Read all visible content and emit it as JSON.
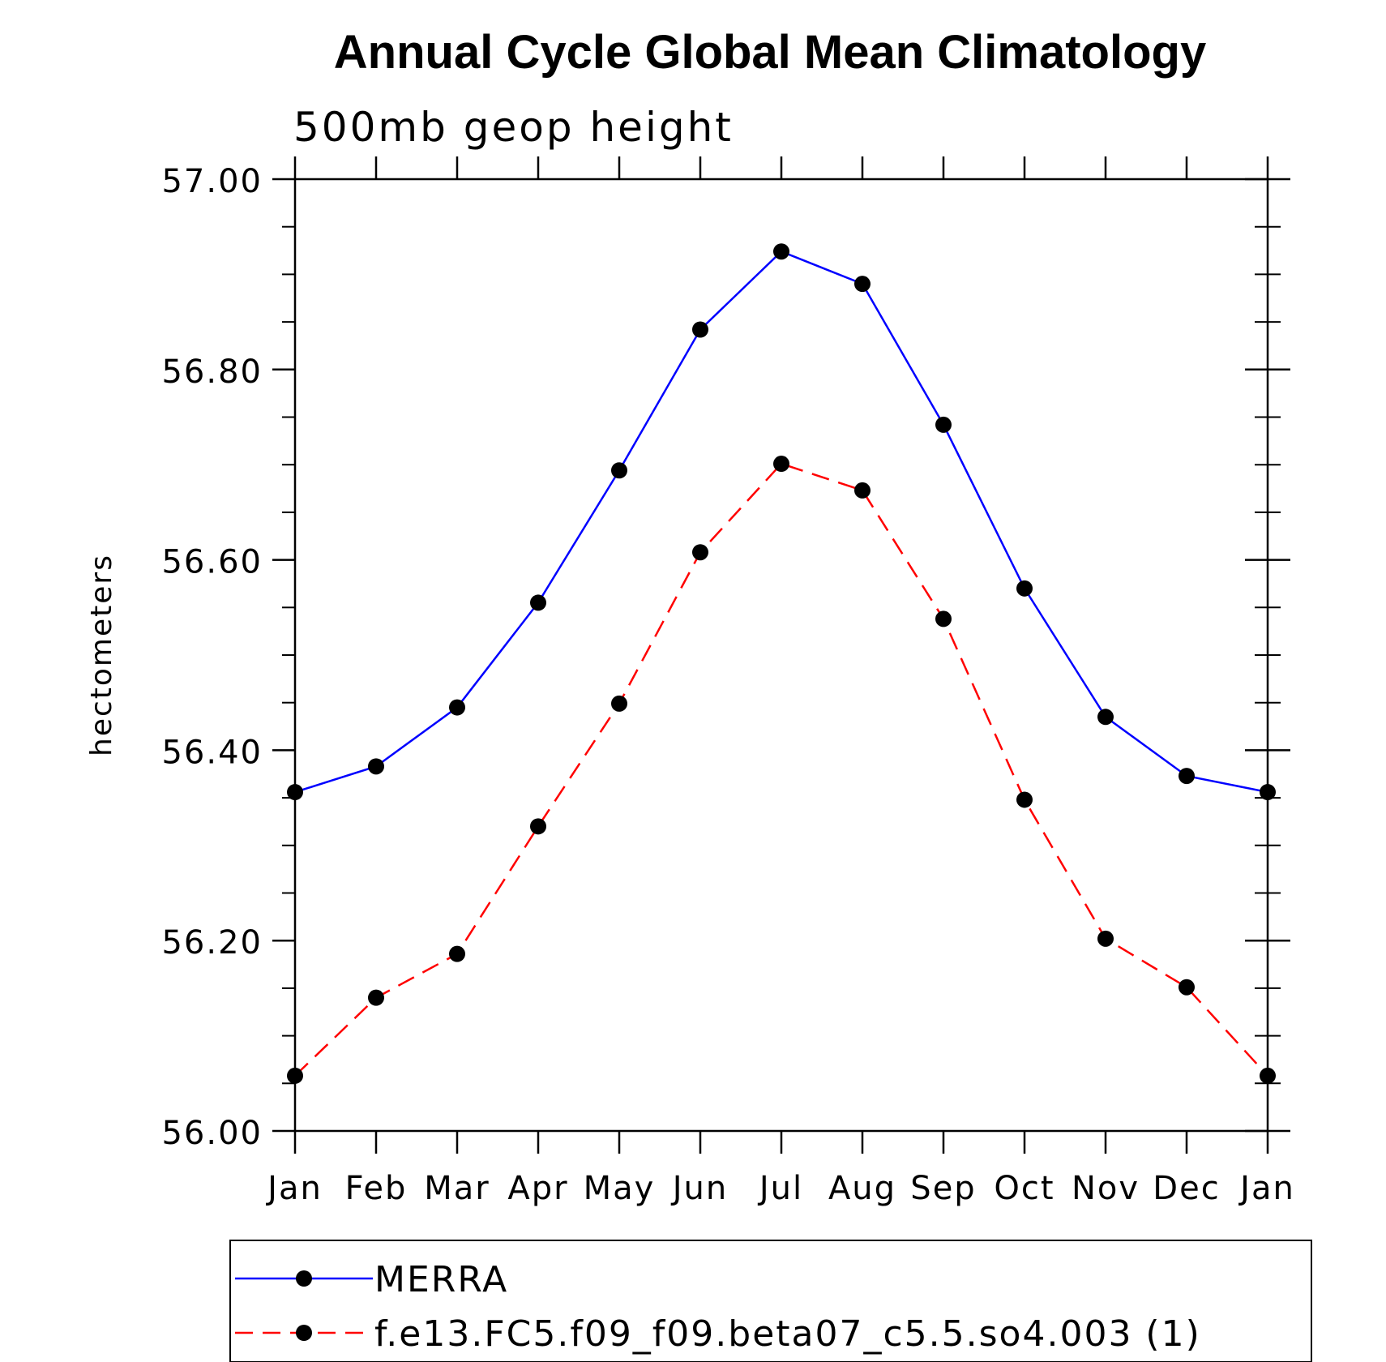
{
  "chart_data": {
    "type": "line",
    "title": "Annual Cycle Global Mean Climatology",
    "subtitle": "500mb geop height",
    "xlabel": "",
    "ylabel": "hectometers",
    "categories": [
      "Jan",
      "Feb",
      "Mar",
      "Apr",
      "May",
      "Jun",
      "Jul",
      "Aug",
      "Sep",
      "Oct",
      "Nov",
      "Dec",
      "Jan"
    ],
    "ylim": [
      56.0,
      57.0
    ],
    "yticks": [
      "56.00",
      "56.20",
      "56.40",
      "56.60",
      "56.80",
      "57.00"
    ],
    "yticks_values": [
      56.0,
      56.2,
      56.4,
      56.6,
      56.8,
      57.0
    ],
    "y_minor_step": 0.05,
    "grid": false,
    "legend_position": "bottom",
    "series": [
      {
        "name": "MERRA",
        "color": "#0000ff",
        "line_style": "solid",
        "marker": "filled-circle",
        "values": [
          56.356,
          56.383,
          56.445,
          56.555,
          56.694,
          56.842,
          56.924,
          56.89,
          56.742,
          56.57,
          56.435,
          56.373,
          56.356
        ]
      },
      {
        "name": "f.e13.FC5.f09_f09.beta07_c5.5.so4.003 (1)",
        "color": "#ff0000",
        "line_style": "dashed",
        "marker": "filled-circle",
        "values": [
          56.058,
          56.14,
          56.186,
          56.32,
          56.449,
          56.608,
          56.701,
          56.673,
          56.538,
          56.348,
          56.202,
          56.151,
          56.058
        ]
      }
    ]
  }
}
